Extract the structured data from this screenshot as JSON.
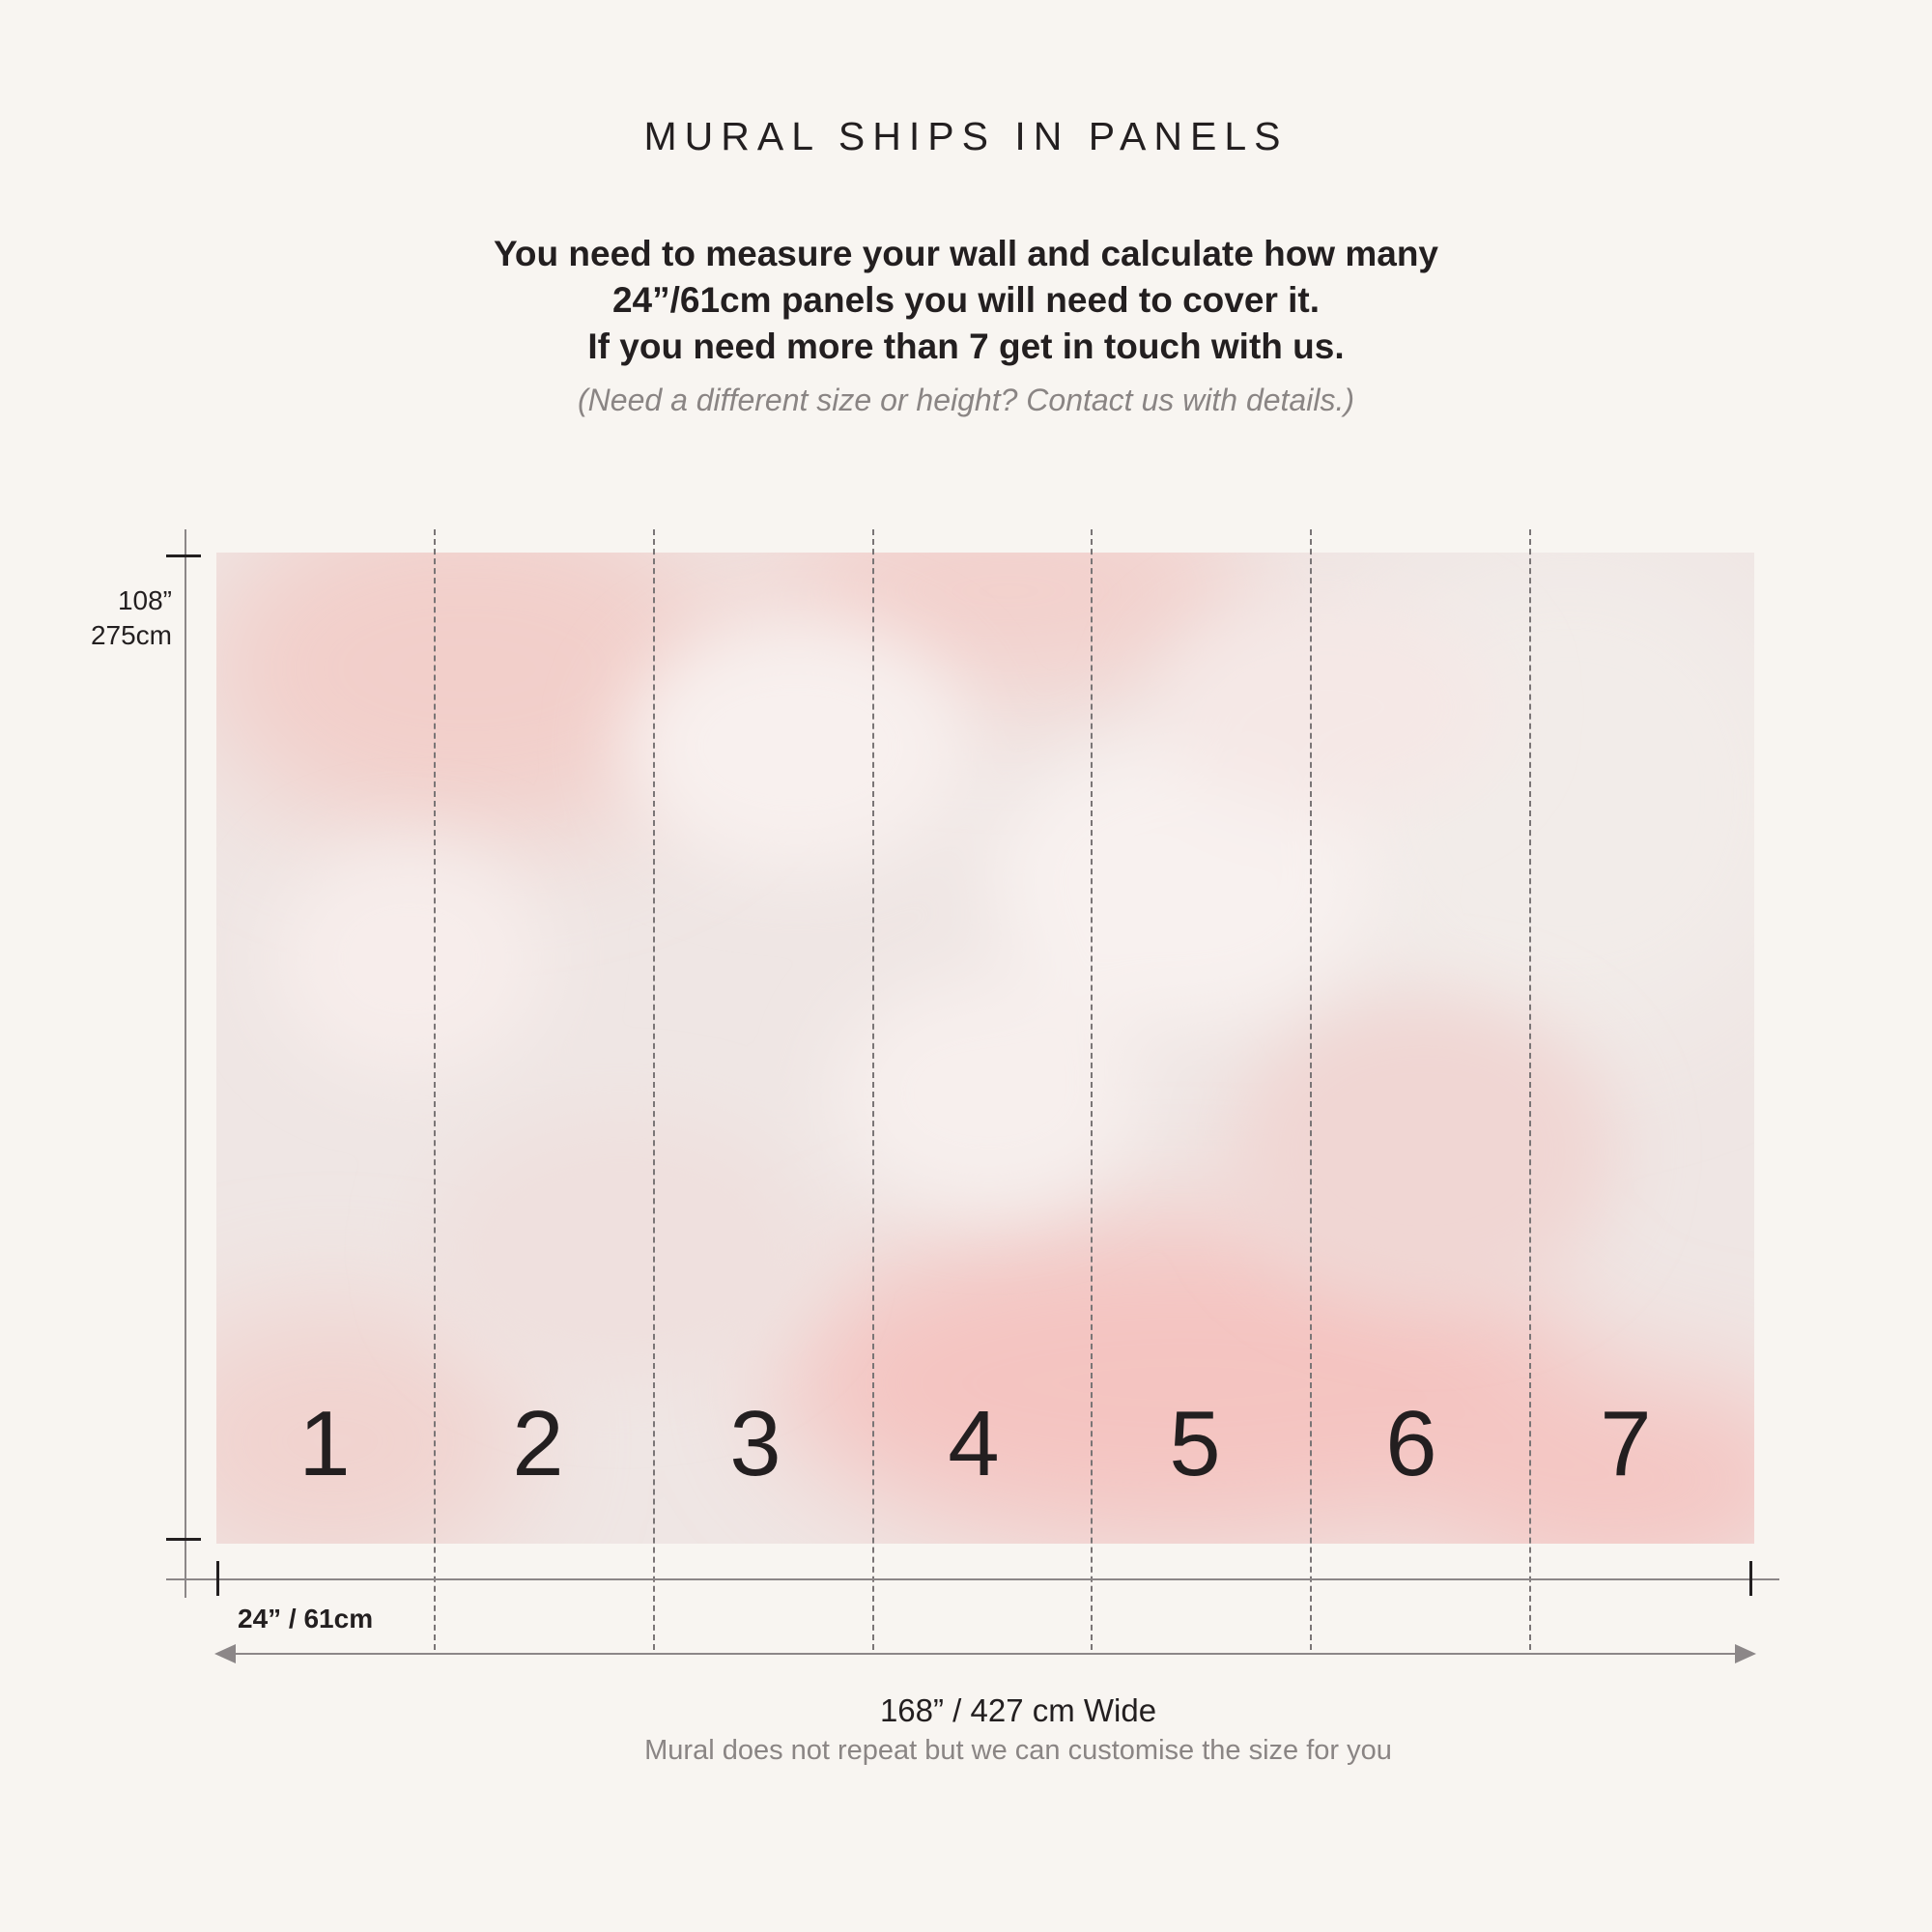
{
  "header": {
    "title": "MURAL SHIPS IN PANELS",
    "instructions": [
      "You need to measure your wall and calculate how many",
      "24”/61cm panels you will need to cover it.",
      "If you need more than 7 get in touch with us."
    ],
    "note": "(Need a different size or height? Contact us with details.)"
  },
  "mural": {
    "panel_count": 7,
    "panels": [
      "1",
      "2",
      "3",
      "4",
      "5",
      "6",
      "7"
    ],
    "colors": {
      "base": "#efe6e4",
      "pink": "#f4c6c3",
      "light": "#f7efed",
      "background": "#f8f5f1"
    }
  },
  "dimensions": {
    "height_in": "108”",
    "height_cm": "275cm",
    "panel_width": "24” / 61cm",
    "total_width": "168” / 427 cm Wide",
    "width_note": "Mural does not repeat but we can customise the size for you"
  }
}
